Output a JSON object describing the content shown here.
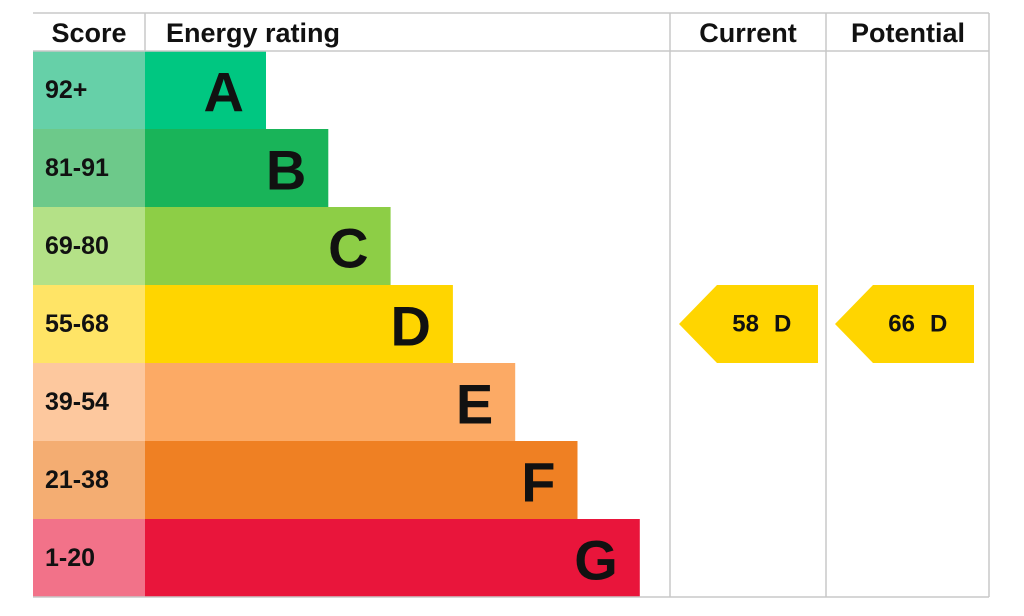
{
  "header": {
    "score": "Score",
    "rating": "Energy rating",
    "current": "Current",
    "potential": "Potential"
  },
  "bands": [
    {
      "score": "92+",
      "letter": "A"
    },
    {
      "score": "81-91",
      "letter": "B"
    },
    {
      "score": "69-80",
      "letter": "C"
    },
    {
      "score": "55-68",
      "letter": "D"
    },
    {
      "score": "39-54",
      "letter": "E"
    },
    {
      "score": "21-38",
      "letter": "F"
    },
    {
      "score": "1-20",
      "letter": "G"
    }
  ],
  "current": {
    "value": "58",
    "letter": "D"
  },
  "potential": {
    "value": "66",
    "letter": "D"
  }
}
